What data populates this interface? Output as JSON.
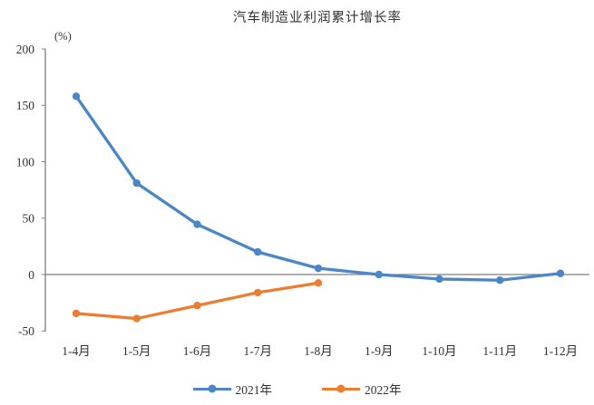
{
  "chart_data": {
    "type": "line",
    "title": "汽车制造业利润累计增长率",
    "ylabel": "(%)",
    "categories": [
      "1-4月",
      "1-5月",
      "1-6月",
      "1-7月",
      "1-8月",
      "1-9月",
      "1-10月",
      "1-11月",
      "1-12月"
    ],
    "series": [
      {
        "name": "2021年",
        "color": "#4a86c8",
        "values": [
          158,
          81,
          44.5,
          20,
          5.5,
          0,
          -4,
          -5,
          1
        ]
      },
      {
        "name": "2022年",
        "color": "#ed7d31",
        "values": [
          -34.5,
          -39,
          -27.5,
          -16,
          -7.5
        ]
      }
    ],
    "ylim": [
      -50,
      200
    ],
    "yticks": [
      200,
      150,
      100,
      50,
      0,
      -50
    ],
    "grid": "zero-line-only",
    "legend_position": "bottom",
    "axis_color": "#7f7f7f",
    "text_color": "#333333"
  }
}
